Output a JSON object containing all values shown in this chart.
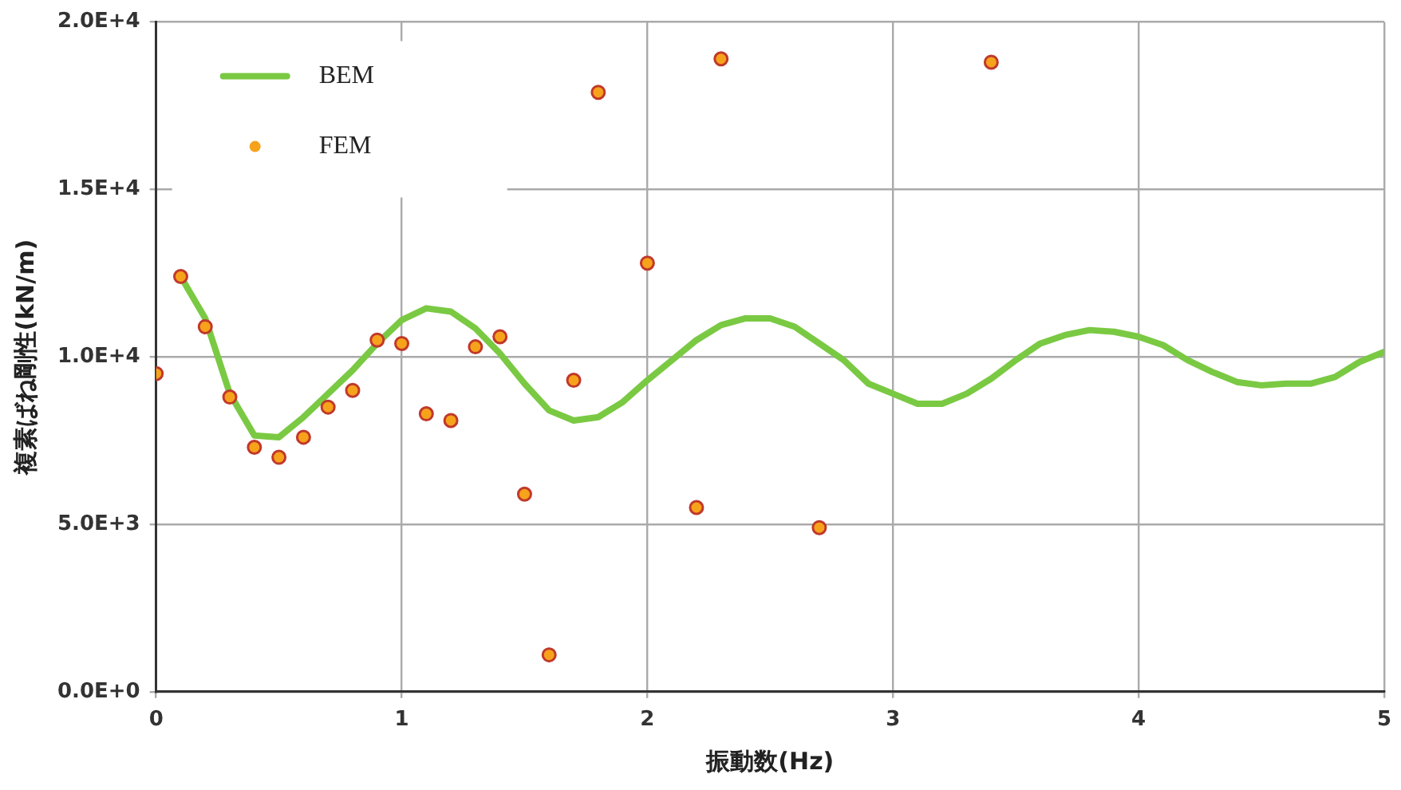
{
  "chart_data": {
    "type": "line",
    "xlabel": "振動数(Hz)",
    "ylabel": "複素ばね剛性(kN/m)",
    "xlim": [
      0,
      5
    ],
    "xticks": [
      0,
      1,
      2,
      3,
      4,
      5
    ],
    "ylim": [
      0,
      20000
    ],
    "yticks": [
      {
        "value": 0,
        "label": "0.0E+0"
      },
      {
        "value": 5000,
        "label": "5.0E+3"
      },
      {
        "value": 10000,
        "label": "1.0E+4"
      },
      {
        "value": 15000,
        "label": "1.5E+4"
      },
      {
        "value": 20000,
        "label": "2.0E+4"
      }
    ],
    "grid": true,
    "legend": "top left",
    "series": [
      {
        "name": "BEM",
        "color": "#7ac943",
        "marker": "none",
        "line_style": "solid",
        "x": [
          0.1,
          0.2,
          0.3,
          0.4,
          0.5,
          0.6,
          0.7,
          0.8,
          0.9,
          1.0,
          1.1,
          1.2,
          1.3,
          1.4,
          1.5,
          1.6,
          1.7,
          1.8,
          1.9,
          2.0,
          2.1,
          2.2,
          2.3,
          2.4,
          2.5,
          2.6,
          2.7,
          2.8,
          2.9,
          3.0,
          3.1,
          3.2,
          3.3,
          3.4,
          3.5,
          3.6,
          3.7,
          3.8,
          3.9,
          4.0,
          4.1,
          4.2,
          4.3,
          4.4,
          4.5,
          4.6,
          4.7,
          4.8,
          4.9,
          5.0
        ],
        "values": [
          12400,
          11150,
          8900,
          7650,
          7600,
          8200,
          8900,
          9600,
          10400,
          11100,
          11450,
          11350,
          10850,
          10100,
          9200,
          8400,
          8100,
          8200,
          8650,
          9300,
          9900,
          10500,
          10950,
          11150,
          11150,
          10900,
          10400,
          9900,
          9200,
          8900,
          8600,
          8600,
          8900,
          9350,
          9900,
          10400,
          10650,
          10800,
          10750,
          10600,
          10350,
          9900,
          9550,
          9250,
          9150,
          9200,
          9200,
          9400,
          9850,
          10150
        ]
      },
      {
        "name": "FEM",
        "type": "scatter",
        "color": "#f7a21b",
        "marker": "circle",
        "x": [
          0,
          0.1,
          0.2,
          0.3,
          0.4,
          0.5,
          0.6,
          0.7,
          0.8,
          0.9,
          1.0,
          1.1,
          1.2,
          1.3,
          1.4,
          1.5,
          1.6,
          1.7,
          1.8,
          2.0,
          2.2,
          2.3,
          2.7,
          3.4
        ],
        "values": [
          9500,
          12400,
          10900,
          8800,
          7300,
          7000,
          7600,
          8500,
          9000,
          10500,
          10400,
          8300,
          8100,
          10300,
          10600,
          5900,
          1100,
          9300,
          17900,
          12800,
          5500,
          18900,
          4900,
          18800
        ]
      }
    ]
  }
}
